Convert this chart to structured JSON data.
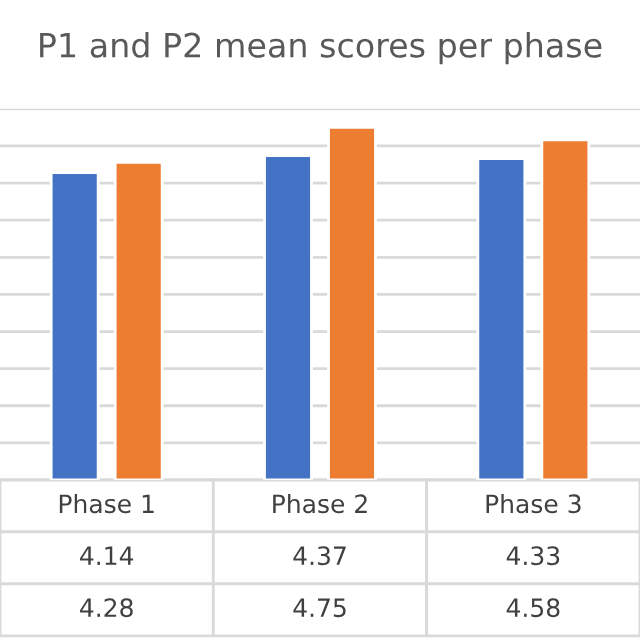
{
  "chart_data": {
    "type": "bar",
    "title": "P1 and P2 mean scores per phase",
    "categories": [
      "Phase 1",
      "Phase 2",
      "Phase 3"
    ],
    "series": [
      {
        "color": "#4472c4",
        "values": [
          4.14,
          4.37,
          4.33
        ]
      },
      {
        "color": "#ed7d31",
        "values": [
          4.28,
          4.75,
          4.58
        ]
      }
    ],
    "ylim": [
      0,
      5
    ],
    "yticks": [
      {
        "value": 0,
        "label": null
      },
      {
        "value": 0.5,
        "label": null
      },
      {
        "value": 1,
        "label": null
      },
      {
        "value": 1.5,
        "label": null
      },
      {
        "value": 2,
        "label": null
      },
      {
        "value": 2.5,
        "label": null
      },
      {
        "value": 3,
        "label": null
      },
      {
        "value": 3.5,
        "label": null
      },
      {
        "value": 4,
        "label": null
      },
      {
        "value": 4.5,
        "label": null
      },
      {
        "value": 5,
        "label": null
      }
    ],
    "grid": "y",
    "tick_labels": false,
    "data_labels": true,
    "legend": false
  }
}
